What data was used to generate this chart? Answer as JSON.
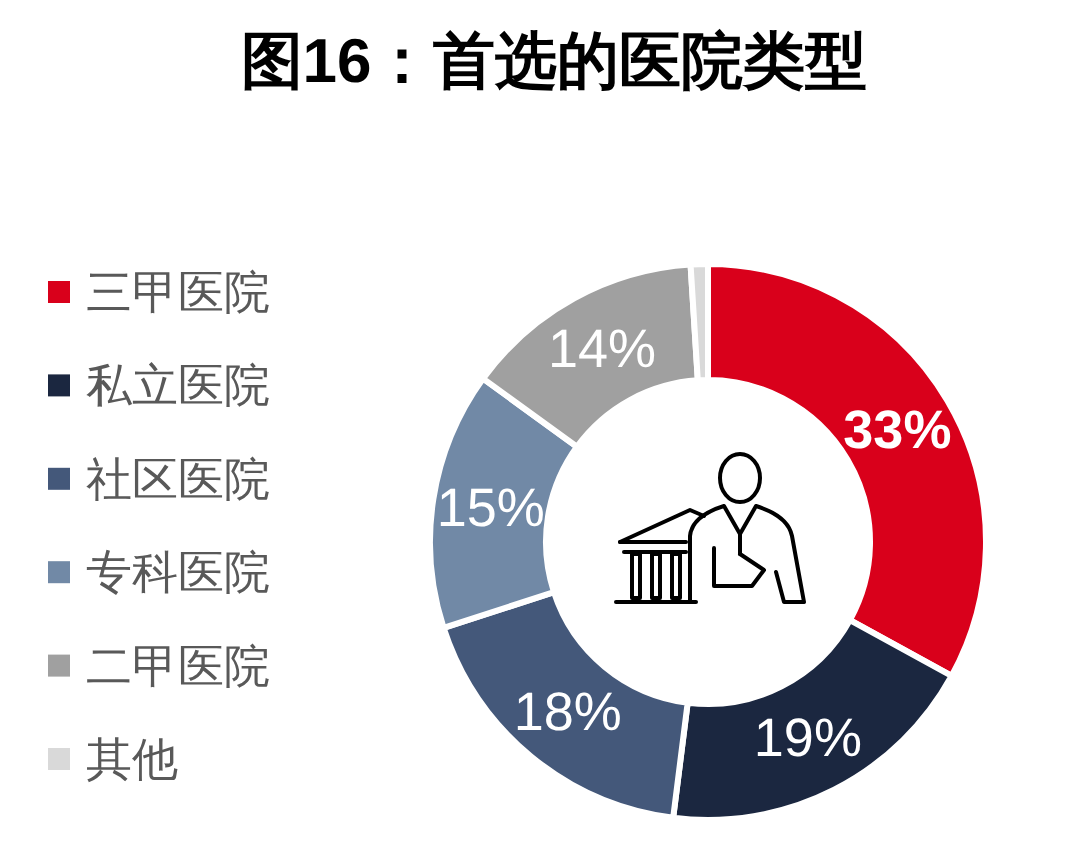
{
  "chart_data": {
    "type": "donut",
    "title": "图16：首选的医院类型",
    "categories": [
      "三甲医院",
      "私立医院",
      "社区医院",
      "专科医院",
      "二甲医院",
      "其他"
    ],
    "values": [
      33,
      19,
      18,
      15,
      14,
      1
    ],
    "colors": [
      "#d9001b",
      "#1b2740",
      "#44587a",
      "#7189a6",
      "#a0a0a0",
      "#d9d9d9"
    ],
    "value_labels": [
      "33%",
      "19%",
      "18%",
      "15%",
      "14%",
      null
    ],
    "legend": "left"
  }
}
